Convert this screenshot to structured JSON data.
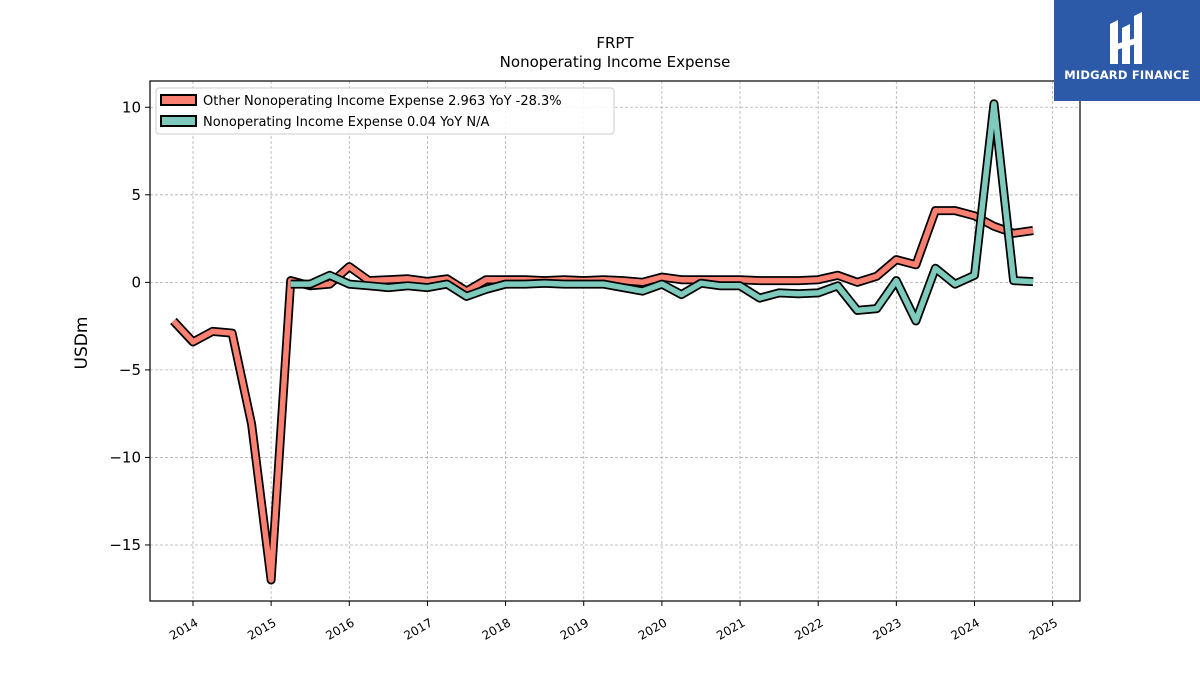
{
  "brand": {
    "name": "MIDGARD FINANCE",
    "bg_color": "#2d5aa8",
    "icon": "midgard-logo-icon"
  },
  "chart_data": {
    "type": "line",
    "title": "FRPT",
    "subtitle": "Nonoperating Income Expense",
    "xlabel": "",
    "ylabel": "USDm",
    "xlim": [
      2013.45,
      2025.35
    ],
    "ylim": [
      -18.2,
      11.5
    ],
    "xticks": [
      2014,
      2015,
      2016,
      2017,
      2018,
      2019,
      2020,
      2021,
      2022,
      2023,
      2024,
      2025
    ],
    "yticks": [
      10,
      5,
      0,
      -5,
      -10,
      -15
    ],
    "ytick_labels": [
      "10",
      "5",
      "0",
      "−5",
      "−10",
      "−15"
    ],
    "grid": true,
    "legend_position": "top-left",
    "series": [
      {
        "name": "Other Nonoperating Income Expense  2.963 YoY -28.3%",
        "color": "#fa8072",
        "x": [
          2013.75,
          2014.0,
          2014.25,
          2014.5,
          2014.75,
          2015.0,
          2015.25,
          2015.5,
          2015.75,
          2016.0,
          2016.25,
          2016.5,
          2016.75,
          2017.0,
          2017.25,
          2017.5,
          2017.75,
          2018.0,
          2018.25,
          2018.5,
          2018.75,
          2019.0,
          2019.25,
          2019.5,
          2019.75,
          2020.0,
          2020.25,
          2020.5,
          2020.75,
          2021.0,
          2021.25,
          2021.5,
          2021.75,
          2022.0,
          2022.25,
          2022.5,
          2022.75,
          2023.0,
          2023.25,
          2023.5,
          2023.75,
          2024.0,
          2024.25,
          2024.5,
          2024.75
        ],
        "values": [
          -2.2,
          -3.4,
          -2.8,
          -2.9,
          -8.1,
          -17.0,
          0.1,
          -0.2,
          -0.1,
          0.9,
          0.1,
          0.15,
          0.2,
          0.05,
          0.2,
          -0.5,
          0.15,
          0.15,
          0.15,
          0.1,
          0.15,
          0.1,
          0.15,
          0.1,
          0.0,
          0.3,
          0.15,
          0.15,
          0.15,
          0.15,
          0.1,
          0.1,
          0.1,
          0.15,
          0.4,
          0.0,
          0.35,
          1.3,
          1.0,
          4.1,
          4.1,
          3.8,
          3.2,
          2.8,
          2.963
        ]
      },
      {
        "name": "Nonoperating Income Expense  0.04 YoY N/A",
        "color": "#7ecbbd",
        "x": [
          2015.25,
          2015.5,
          2015.75,
          2016.0,
          2016.25,
          2016.5,
          2016.75,
          2017.0,
          2017.25,
          2017.5,
          2017.75,
          2018.0,
          2018.25,
          2018.5,
          2018.75,
          2019.0,
          2019.25,
          2019.5,
          2019.75,
          2020.0,
          2020.25,
          2020.5,
          2020.75,
          2021.0,
          2021.25,
          2021.5,
          2021.75,
          2022.0,
          2022.25,
          2022.5,
          2022.75,
          2023.0,
          2023.25,
          2023.5,
          2023.75,
          2024.0,
          2024.25,
          2024.5,
          2024.75
        ],
        "values": [
          -0.1,
          -0.1,
          0.4,
          -0.1,
          -0.2,
          -0.3,
          -0.2,
          -0.3,
          -0.1,
          -0.8,
          -0.4,
          -0.1,
          -0.1,
          -0.05,
          -0.1,
          -0.1,
          -0.1,
          -0.3,
          -0.5,
          -0.1,
          -0.7,
          -0.05,
          -0.2,
          -0.2,
          -0.9,
          -0.6,
          -0.65,
          -0.6,
          -0.2,
          -1.6,
          -1.5,
          0.1,
          -2.2,
          0.8,
          -0.1,
          0.4,
          10.2,
          0.1,
          0.04
        ]
      }
    ]
  }
}
